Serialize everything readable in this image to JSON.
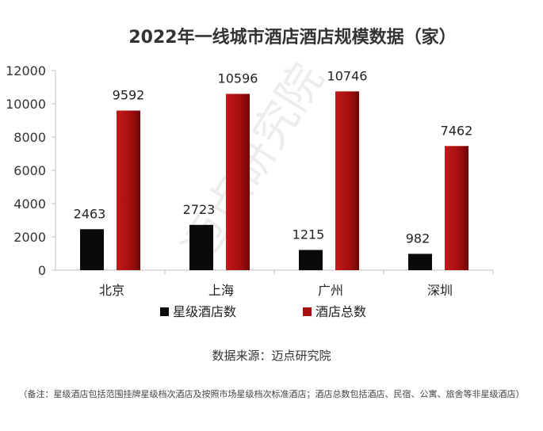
{
  "chart_data": {
    "type": "bar",
    "title": "2022年一线城市酒店酒店规模数据（家）",
    "categories": [
      "北京",
      "上海",
      "广州",
      "深圳"
    ],
    "series": [
      {
        "name": "星级酒店数",
        "values": [
          2463,
          2723,
          1215,
          982
        ],
        "color": "#0a0a0a"
      },
      {
        "name": "酒店总数",
        "values": [
          9592,
          10596,
          10746,
          7462
        ],
        "color": "#a80f0f"
      }
    ],
    "ylim": [
      0,
      12000
    ],
    "yticks": [
      0,
      2000,
      4000,
      6000,
      8000,
      10000,
      12000
    ],
    "grid": false,
    "legend_position": "bottom"
  },
  "watermark": "迈点研究院",
  "source": "数据来源：迈点研究院",
  "note": "（备注：星级酒店包括范围挂牌星级档次酒店及按照市场星级档次标准酒店；酒店总数包括酒店、民宿、公寓、旅舍等非星级酒店）"
}
